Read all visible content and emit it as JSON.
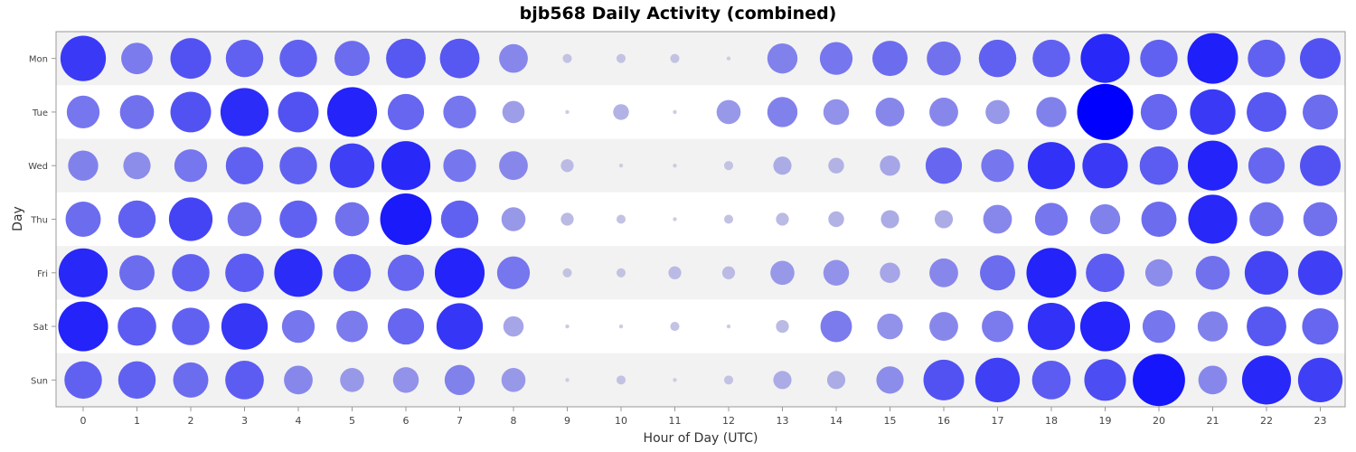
{
  "chart_data": {
    "type": "scatter",
    "title": "bjb568 Daily Activity (combined)",
    "xlabel": "Hour of Day (UTC)",
    "ylabel": "Day",
    "x": [
      0,
      1,
      2,
      3,
      4,
      5,
      6,
      7,
      8,
      9,
      10,
      11,
      12,
      13,
      14,
      15,
      16,
      17,
      18,
      19,
      20,
      21,
      22,
      23
    ],
    "days": [
      "Mon",
      "Tue",
      "Wed",
      "Thu",
      "Fri",
      "Sat",
      "Sun"
    ],
    "grid": true,
    "values": [
      [
        25,
        12,
        20,
        17,
        17,
        15,
        19,
        19,
        10,
        1,
        1,
        1,
        0,
        11,
        13,
        15,
        14,
        17,
        17,
        29,
        17,
        31,
        17,
        20
      ],
      [
        13,
        14,
        20,
        28,
        20,
        30,
        16,
        13,
        6,
        0,
        3,
        0,
        7,
        11,
        8,
        10,
        10,
        7,
        11,
        38,
        16,
        25,
        19,
        15
      ],
      [
        11,
        9,
        13,
        17,
        17,
        24,
        29,
        13,
        10,
        2,
        0,
        0,
        1,
        4,
        3,
        5,
        16,
        13,
        27,
        25,
        18,
        30,
        16,
        20
      ],
      [
        15,
        17,
        23,
        14,
        17,
        14,
        32,
        17,
        7,
        2,
        1,
        0,
        1,
        2,
        3,
        4,
        4,
        10,
        13,
        11,
        15,
        29,
        14,
        14
      ],
      [
        29,
        15,
        17,
        18,
        28,
        17,
        16,
        30,
        13,
        1,
        1,
        2,
        2,
        7,
        8,
        5,
        10,
        15,
        30,
        18,
        9,
        14,
        23,
        24
      ],
      [
        30,
        18,
        17,
        26,
        13,
        12,
        16,
        26,
        5,
        0,
        0,
        1,
        0,
        2,
        12,
        8,
        10,
        12,
        27,
        30,
        13,
        11,
        19,
        16
      ],
      [
        17,
        17,
        15,
        18,
        10,
        7,
        8,
        11,
        7,
        0,
        1,
        0,
        1,
        4,
        4,
        9,
        20,
        24,
        18,
        21,
        33,
        10,
        29,
        24
      ]
    ]
  }
}
